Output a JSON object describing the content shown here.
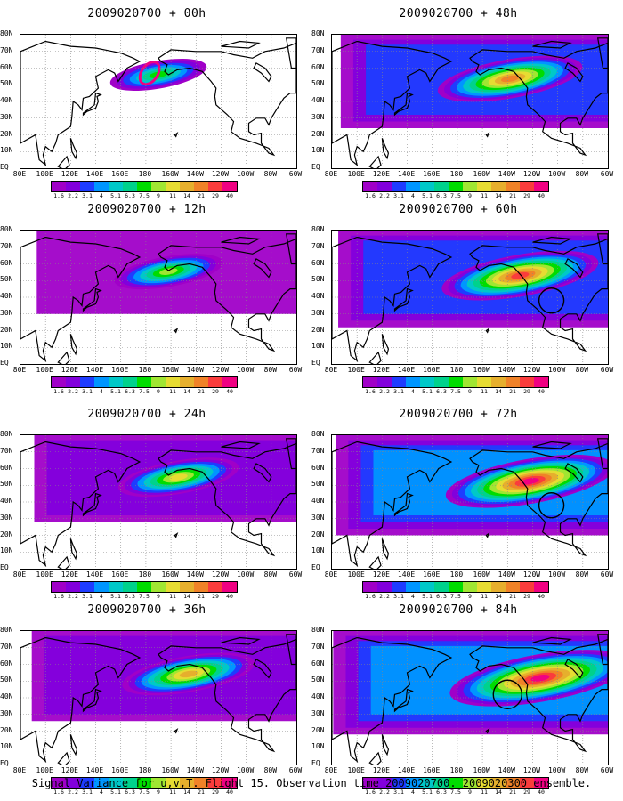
{
  "panels": [
    {
      "title": "2009020700 + 00h",
      "stage": 0
    },
    {
      "title": "2009020700 + 48h",
      "stage": 4
    },
    {
      "title": "2009020700 + 12h",
      "stage": 1
    },
    {
      "title": "2009020700 + 60h",
      "stage": 5
    },
    {
      "title": "2009020700 + 24h",
      "stage": 2
    },
    {
      "title": "2009020700 + 72h",
      "stage": 6
    },
    {
      "title": "2009020700 + 36h",
      "stage": 3
    },
    {
      "title": "2009020700 + 84h",
      "stage": 7
    }
  ],
  "lat_labels": [
    "80N",
    "70N",
    "60N",
    "50N",
    "40N",
    "30N",
    "20N",
    "10N",
    "EQ"
  ],
  "lon_labels": [
    "80E",
    "100E",
    "120E",
    "140E",
    "160E",
    "180",
    "160W",
    "140W",
    "120W",
    "100W",
    "80W",
    "60W"
  ],
  "colorbar": {
    "labels": [
      "1.6",
      "2.2",
      "3.1",
      "4",
      "5.1",
      "6.3",
      "7.5",
      "9",
      "11",
      "14",
      "21",
      "29",
      "40"
    ],
    "colors": [
      "#a000c8",
      "#8200dc",
      "#1e3cff",
      "#0096ff",
      "#00c8c8",
      "#00d28c",
      "#00dc00",
      "#a0e632",
      "#e6dc32",
      "#e6af2d",
      "#f08228",
      "#fa3c3c",
      "#f00082"
    ]
  },
  "footer": "Signal Variance for u,v,T. Flight 15. Observation time 2009020700. 2009020300 ensemble."
}
